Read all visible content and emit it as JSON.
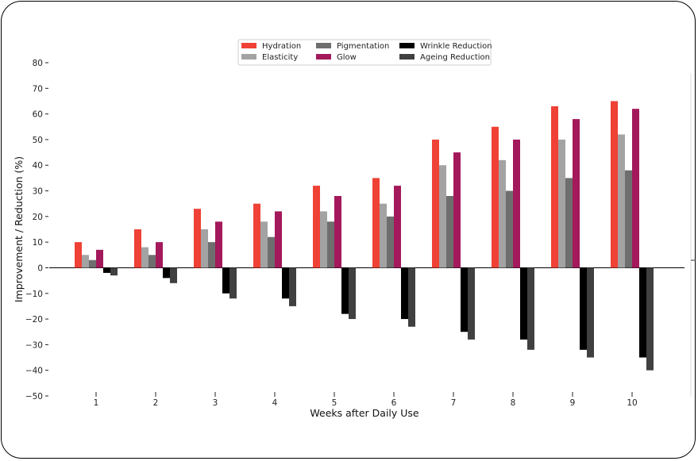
{
  "chart_data": {
    "type": "bar",
    "title": "",
    "xlabel": "Weeks after Daily Use",
    "ylabel": "Improvement / Reduction (%)",
    "categories": [
      "1",
      "2",
      "3",
      "4",
      "5",
      "6",
      "7",
      "8",
      "9",
      "10"
    ],
    "ylim": [
      -50,
      80
    ],
    "yticks": [
      "80",
      "70",
      "60",
      "50",
      "40",
      "30",
      "20",
      "10",
      "0",
      "−10",
      "−20",
      "−30",
      "−40",
      "−50"
    ],
    "ytick_values": [
      80,
      70,
      60,
      50,
      40,
      30,
      20,
      10,
      0,
      -10,
      -20,
      -30,
      -40,
      -50
    ],
    "grid": false,
    "legend_position": "top-center",
    "series": [
      {
        "name": "Hydration",
        "color": "#ef4136",
        "values": [
          10,
          15,
          23,
          25,
          32,
          35,
          50,
          55,
          63,
          65
        ]
      },
      {
        "name": "Elasticity",
        "color": "#a3a3a3",
        "values": [
          5,
          8,
          15,
          18,
          22,
          25,
          40,
          42,
          50,
          52
        ]
      },
      {
        "name": "Pigmentation",
        "color": "#6e6e6e",
        "values": [
          3,
          5,
          10,
          12,
          18,
          20,
          28,
          30,
          35,
          38
        ]
      },
      {
        "name": "Glow",
        "color": "#a3195b",
        "values": [
          7,
          10,
          18,
          22,
          28,
          32,
          45,
          50,
          58,
          62
        ]
      },
      {
        "name": "Wrinkle Reduction",
        "color": "#000000",
        "values": [
          -2,
          -4,
          -10,
          -12,
          -18,
          -20,
          -25,
          -28,
          -32,
          -35
        ]
      },
      {
        "name": "Ageing Reduction",
        "color": "#404040",
        "values": [
          -3,
          -6,
          -12,
          -15,
          -20,
          -23,
          -28,
          -32,
          -35,
          -40
        ]
      }
    ]
  }
}
